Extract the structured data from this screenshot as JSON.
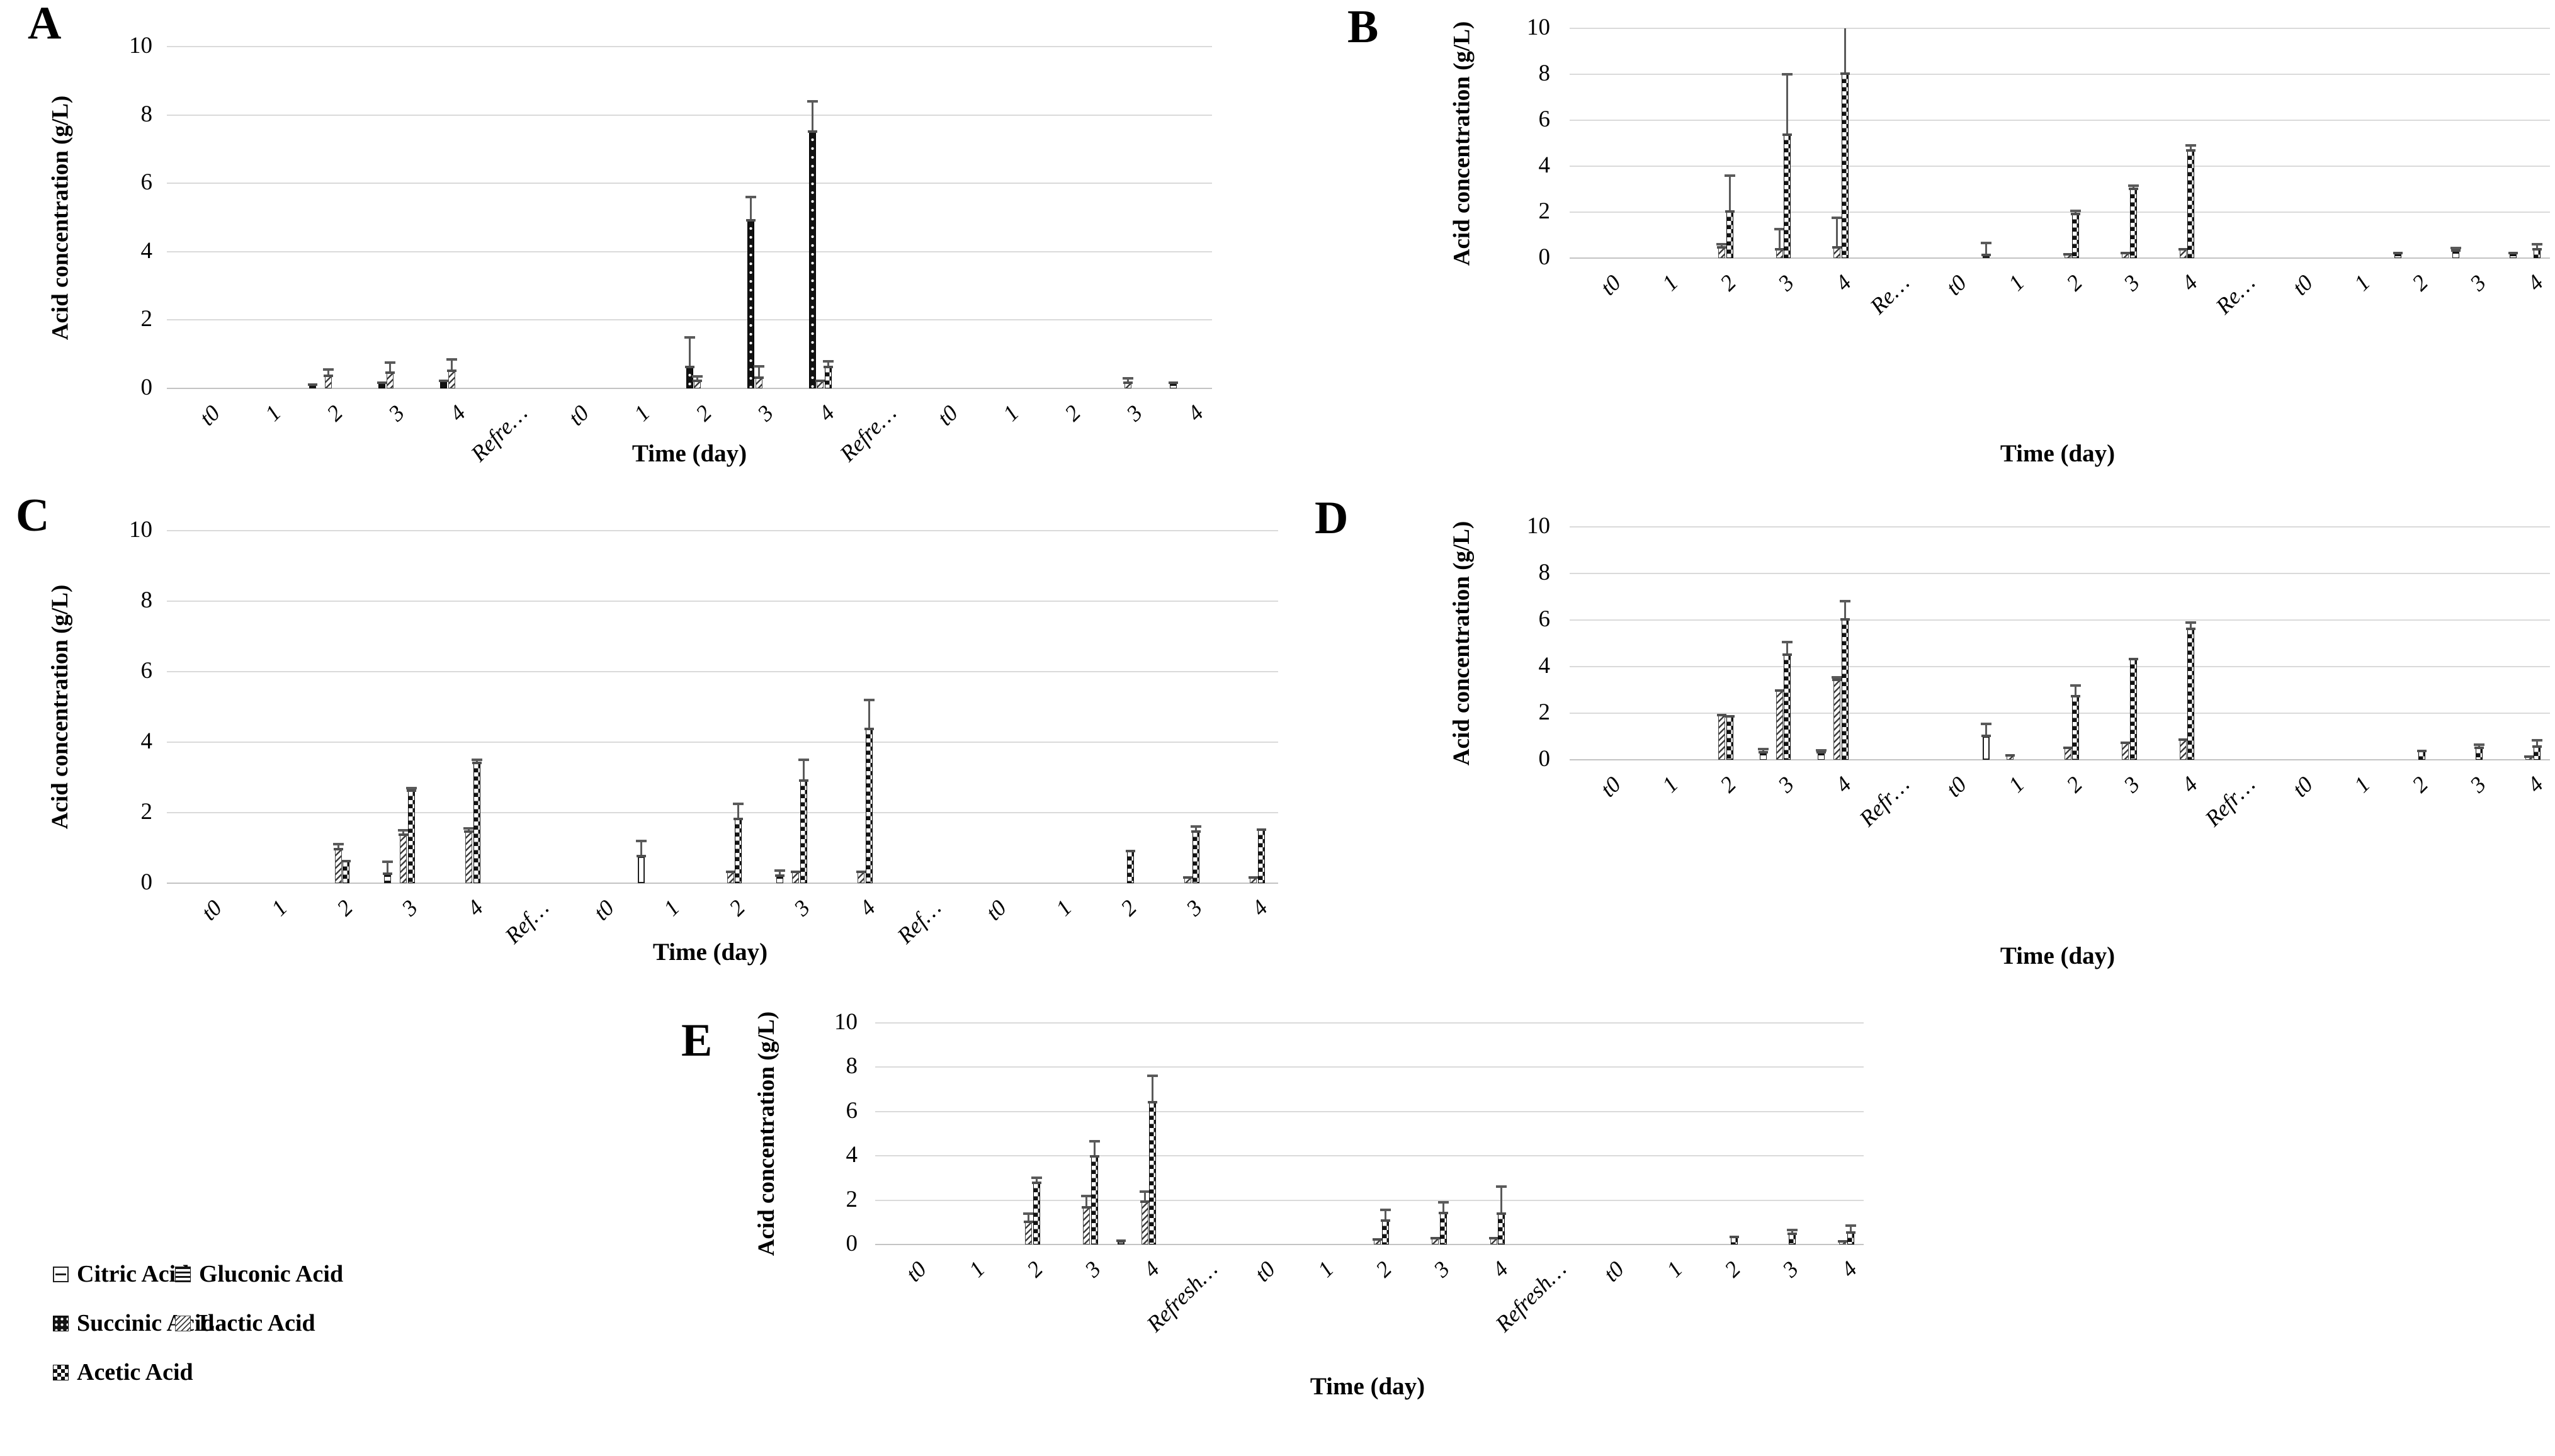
{
  "figure": {
    "background": "#ffffff",
    "ylabel": "Acid concentration (g/L)",
    "xlabel": "Time (day)",
    "ytick_labels": [
      "0",
      "2",
      "4",
      "6",
      "8",
      "10"
    ],
    "grid": true,
    "legend_position": "bottom-left",
    "colors": {
      "bar_ink": "#121212",
      "whisker": "#5a5a5a",
      "gridline": "#dadada"
    },
    "legend": [
      {
        "series": "citric",
        "label": "Citric Acid"
      },
      {
        "series": "gluconic",
        "label": "Gluconic Acid"
      },
      {
        "series": "succinic",
        "label": "Succinic Acid"
      },
      {
        "series": "lactic",
        "label": "Lactic Acid"
      },
      {
        "series": "acetic",
        "label": "Acetic Acid"
      }
    ]
  },
  "chart_data": {
    "type": "bar",
    "unit": "g/L",
    "ylim": [
      0,
      10
    ],
    "yticks": [
      0,
      2,
      4,
      6,
      8,
      10
    ],
    "series_order": [
      "citric",
      "gluconic",
      "succinic",
      "lactic",
      "acetic"
    ],
    "panels": [
      {
        "label": "A",
        "categories": [
          "t0",
          "1",
          "2",
          "3",
          "4",
          "Refre…",
          "t0",
          "1",
          "2",
          "3",
          "4",
          "Refre…",
          "t0",
          "1",
          "2",
          "3",
          "4"
        ],
        "bars": [
          {
            "cat": 2,
            "series": "gluconic",
            "value": 0.1
          },
          {
            "cat": 2,
            "series": "lactic",
            "value": 0.35,
            "err": 0.2
          },
          {
            "cat": 3,
            "series": "succinic",
            "value": 0.15
          },
          {
            "cat": 3,
            "series": "lactic",
            "value": 0.45,
            "err": 0.3
          },
          {
            "cat": 4,
            "series": "succinic",
            "value": 0.2
          },
          {
            "cat": 4,
            "series": "lactic",
            "value": 0.5,
            "err": 0.35
          },
          {
            "cat": 8,
            "series": "succinic",
            "value": 0.6,
            "err": 0.9
          },
          {
            "cat": 8,
            "series": "lactic",
            "value": 0.2,
            "err": 0.15
          },
          {
            "cat": 9,
            "series": "succinic",
            "value": 4.9,
            "err": 0.7
          },
          {
            "cat": 9,
            "series": "lactic",
            "value": 0.3,
            "err": 0.35
          },
          {
            "cat": 10,
            "series": "succinic",
            "value": 7.5,
            "err": 0.9
          },
          {
            "cat": 10,
            "series": "lactic",
            "value": 0.2
          },
          {
            "cat": 10,
            "series": "acetic",
            "value": 0.6,
            "err": 0.2
          },
          {
            "cat": 15,
            "series": "lactic",
            "value": 0.15,
            "err": 0.15
          },
          {
            "cat": 16,
            "series": "gluconic",
            "value": 0.15
          }
        ]
      },
      {
        "label": "B",
        "categories": [
          "t0",
          "1",
          "2",
          "3",
          "4",
          "Re…",
          "t0",
          "1",
          "2",
          "3",
          "4",
          "Re…",
          "t0",
          "1",
          "2",
          "3",
          "4"
        ],
        "bars": [
          {
            "cat": 2,
            "series": "lactic",
            "value": 0.45,
            "err": 0.15
          },
          {
            "cat": 2,
            "series": "acetic",
            "value": 2.0,
            "err": 1.6
          },
          {
            "cat": 3,
            "series": "lactic",
            "value": 0.35,
            "err": 0.9
          },
          {
            "cat": 3,
            "series": "acetic",
            "value": 5.35,
            "err": 2.65
          },
          {
            "cat": 4,
            "series": "lactic",
            "value": 0.45,
            "err": 1.3
          },
          {
            "cat": 4,
            "series": "acetic",
            "value": 8.0,
            "err": 2.2
          },
          {
            "cat": 7,
            "series": "citric",
            "value": 0.1,
            "err": 0.55
          },
          {
            "cat": 8,
            "series": "lactic",
            "value": 0.15
          },
          {
            "cat": 8,
            "series": "acetic",
            "value": 1.9,
            "err": 0.15
          },
          {
            "cat": 9,
            "series": "lactic",
            "value": 0.2
          },
          {
            "cat": 9,
            "series": "acetic",
            "value": 3.0,
            "err": 0.15
          },
          {
            "cat": 10,
            "series": "lactic",
            "value": 0.35
          },
          {
            "cat": 10,
            "series": "acetic",
            "value": 4.65,
            "err": 0.25
          },
          {
            "cat": 14,
            "series": "gluconic",
            "value": 0.2
          },
          {
            "cat": 15,
            "series": "gluconic",
            "value": 0.3,
            "err": 0.15
          },
          {
            "cat": 16,
            "series": "gluconic",
            "value": 0.2
          },
          {
            "cat": 16,
            "series": "acetic",
            "value": 0.35,
            "err": 0.25
          }
        ]
      },
      {
        "label": "C",
        "categories": [
          "t0",
          "1",
          "2",
          "3",
          "4",
          "Ref…",
          "t0",
          "1",
          "2",
          "3",
          "4",
          "Ref…",
          "t0",
          "1",
          "2",
          "3",
          "4"
        ],
        "bars": [
          {
            "cat": 2,
            "series": "lactic",
            "value": 0.95,
            "err": 0.15
          },
          {
            "cat": 2,
            "series": "acetic",
            "value": 0.6
          },
          {
            "cat": 3,
            "series": "gluconic",
            "value": 0.25,
            "err": 0.35
          },
          {
            "cat": 3,
            "series": "lactic",
            "value": 1.35,
            "err": 0.15
          },
          {
            "cat": 3,
            "series": "acetic",
            "value": 2.6,
            "err": 0.1
          },
          {
            "cat": 4,
            "series": "lactic",
            "value": 1.45,
            "err": 0.1
          },
          {
            "cat": 4,
            "series": "acetic",
            "value": 3.4,
            "err": 0.1
          },
          {
            "cat": 7,
            "series": "citric",
            "value": 0.75,
            "err": 0.45
          },
          {
            "cat": 8,
            "series": "lactic",
            "value": 0.3
          },
          {
            "cat": 8,
            "series": "acetic",
            "value": 1.8,
            "err": 0.45
          },
          {
            "cat": 9,
            "series": "gluconic",
            "value": 0.2,
            "err": 0.15
          },
          {
            "cat": 9,
            "series": "lactic",
            "value": 0.3
          },
          {
            "cat": 9,
            "series": "acetic",
            "value": 2.9,
            "err": 0.6
          },
          {
            "cat": 10,
            "series": "lactic",
            "value": 0.3
          },
          {
            "cat": 10,
            "series": "acetic",
            "value": 4.35,
            "err": 0.85
          },
          {
            "cat": 14,
            "series": "acetic",
            "value": 0.9
          },
          {
            "cat": 15,
            "series": "lactic",
            "value": 0.15
          },
          {
            "cat": 15,
            "series": "acetic",
            "value": 1.45,
            "err": 0.15
          },
          {
            "cat": 16,
            "series": "lactic",
            "value": 0.15
          },
          {
            "cat": 16,
            "series": "acetic",
            "value": 1.5
          }
        ]
      },
      {
        "label": "D",
        "categories": [
          "t0",
          "1",
          "2",
          "3",
          "4",
          "Refr…",
          "t0",
          "1",
          "2",
          "3",
          "4",
          "Refr…",
          "t0",
          "1",
          "2",
          "3",
          "4"
        ],
        "bars": [
          {
            "cat": 2,
            "series": "lactic",
            "value": 1.9
          },
          {
            "cat": 2,
            "series": "acetic",
            "value": 1.85
          },
          {
            "cat": 3,
            "series": "gluconic",
            "value": 0.3,
            "err": 0.15
          },
          {
            "cat": 3,
            "series": "lactic",
            "value": 2.95
          },
          {
            "cat": 3,
            "series": "acetic",
            "value": 4.5,
            "err": 0.55
          },
          {
            "cat": 4,
            "series": "gluconic",
            "value": 0.3,
            "err": 0.1
          },
          {
            "cat": 4,
            "series": "lactic",
            "value": 3.4,
            "err": 0.15
          },
          {
            "cat": 4,
            "series": "acetic",
            "value": 6.0,
            "err": 0.8
          },
          {
            "cat": 7,
            "series": "citric",
            "value": 1.0,
            "err": 0.55
          },
          {
            "cat": 7,
            "series": "lactic",
            "value": 0.15
          },
          {
            "cat": 8,
            "series": "lactic",
            "value": 0.5
          },
          {
            "cat": 8,
            "series": "acetic",
            "value": 2.7,
            "err": 0.5
          },
          {
            "cat": 9,
            "series": "lactic",
            "value": 0.7
          },
          {
            "cat": 9,
            "series": "acetic",
            "value": 4.3
          },
          {
            "cat": 10,
            "series": "lactic",
            "value": 0.85
          },
          {
            "cat": 10,
            "series": "acetic",
            "value": 5.6,
            "err": 0.3
          },
          {
            "cat": 14,
            "series": "acetic",
            "value": 0.35
          },
          {
            "cat": 15,
            "series": "acetic",
            "value": 0.5,
            "err": 0.15
          },
          {
            "cat": 16,
            "series": "lactic",
            "value": 0.1
          },
          {
            "cat": 16,
            "series": "acetic",
            "value": 0.55,
            "err": 0.3
          }
        ]
      },
      {
        "label": "E",
        "categories": [
          "t0",
          "1",
          "2",
          "3",
          "4",
          "Refresh…",
          "t0",
          "1",
          "2",
          "3",
          "4",
          "Refresh…",
          "t0",
          "1",
          "2",
          "3",
          "4"
        ],
        "bars": [
          {
            "cat": 2,
            "series": "lactic",
            "value": 1.0,
            "err": 0.4
          },
          {
            "cat": 2,
            "series": "acetic",
            "value": 2.75,
            "err": 0.25
          },
          {
            "cat": 3,
            "series": "lactic",
            "value": 1.65,
            "err": 0.55
          },
          {
            "cat": 3,
            "series": "acetic",
            "value": 3.95,
            "err": 0.7
          },
          {
            "cat": 4,
            "series": "citric",
            "value": 0.15
          },
          {
            "cat": 4,
            "series": "lactic",
            "value": 1.9,
            "err": 0.5
          },
          {
            "cat": 4,
            "series": "acetic",
            "value": 6.4,
            "err": 1.2
          },
          {
            "cat": 8,
            "series": "lactic",
            "value": 0.2
          },
          {
            "cat": 8,
            "series": "acetic",
            "value": 1.05,
            "err": 0.5
          },
          {
            "cat": 9,
            "series": "lactic",
            "value": 0.25
          },
          {
            "cat": 9,
            "series": "acetic",
            "value": 1.4,
            "err": 0.5
          },
          {
            "cat": 10,
            "series": "lactic",
            "value": 0.25
          },
          {
            "cat": 10,
            "series": "acetic",
            "value": 1.35,
            "err": 1.25
          },
          {
            "cat": 14,
            "series": "acetic",
            "value": 0.3
          },
          {
            "cat": 15,
            "series": "acetic",
            "value": 0.45,
            "err": 0.2
          },
          {
            "cat": 16,
            "series": "lactic",
            "value": 0.1
          },
          {
            "cat": 16,
            "series": "acetic",
            "value": 0.5,
            "err": 0.35
          }
        ]
      }
    ]
  }
}
